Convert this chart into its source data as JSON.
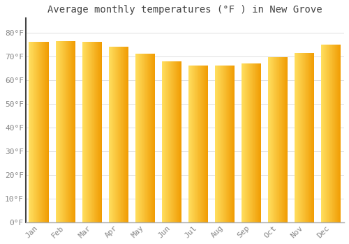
{
  "title": "Average monthly temperatures (°F ) in New Grove",
  "months": [
    "Jan",
    "Feb",
    "Mar",
    "Apr",
    "May",
    "Jun",
    "Jul",
    "Aug",
    "Sep",
    "Oct",
    "Nov",
    "Dec"
  ],
  "values": [
    76,
    76.5,
    76,
    74,
    71,
    68,
    66,
    66,
    67,
    69.5,
    71.5,
    75
  ],
  "bar_color_dark": "#F5A500",
  "bar_color_light": "#FFD966",
  "yticks": [
    0,
    10,
    20,
    30,
    40,
    50,
    60,
    70,
    80
  ],
  "ytick_labels": [
    "0°F",
    "10°F",
    "20°F",
    "30°F",
    "40°F",
    "50°F",
    "60°F",
    "70°F",
    "80°F"
  ],
  "ylim": [
    0,
    86
  ],
  "background_color": "#FFFFFF",
  "grid_color": "#E0E0E0",
  "title_fontsize": 10,
  "tick_fontsize": 8,
  "title_color": "#444444",
  "tick_color": "#888888",
  "bar_width": 0.75,
  "figsize": [
    5.0,
    3.5
  ],
  "dpi": 100
}
